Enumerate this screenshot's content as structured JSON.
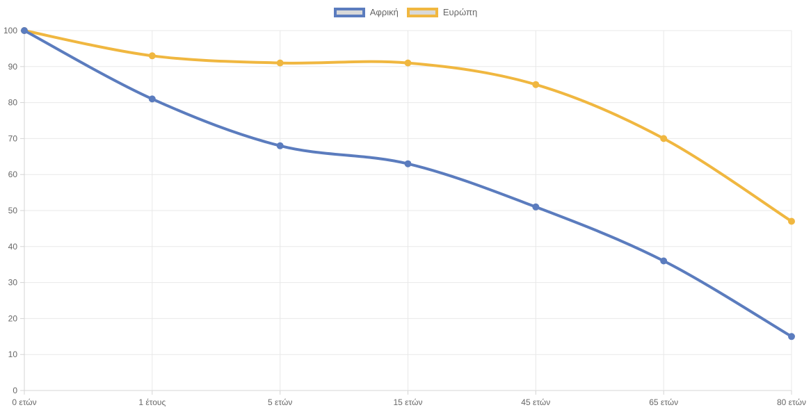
{
  "chart_data": {
    "type": "line",
    "categories": [
      "0 ετών",
      "1 έτους",
      "5 ετών",
      "15 ετών",
      "45 ετών",
      "65 ετών",
      "80 ετών"
    ],
    "series": [
      {
        "id": "africa",
        "name": "Αφρική",
        "color": "#5b7cbe",
        "values": [
          100,
          81,
          68,
          63,
          51,
          36,
          15
        ]
      },
      {
        "id": "europe",
        "name": "Ευρώπη",
        "color": "#f0b740",
        "values": [
          100,
          93,
          91,
          91,
          85,
          70,
          47
        ]
      }
    ],
    "title": "",
    "xlabel": "",
    "ylabel": "",
    "ylim": [
      0,
      100
    ],
    "ytick_step": 10,
    "ytick_labels": [
      "0",
      "10",
      "20",
      "30",
      "40",
      "50",
      "60",
      "70",
      "80",
      "90",
      "100"
    ],
    "grid": true,
    "legend_position": "top",
    "smooth": true,
    "style": {
      "grid_color": "#e8e8e8",
      "axis_color": "#d4d4d4",
      "tick_label_color": "#666666",
      "legend_text_color": "#666666",
      "legend_swatch_fill": "#d9d9d9",
      "background": "#ffffff",
      "line_width": 4,
      "point_radius": 5
    }
  }
}
